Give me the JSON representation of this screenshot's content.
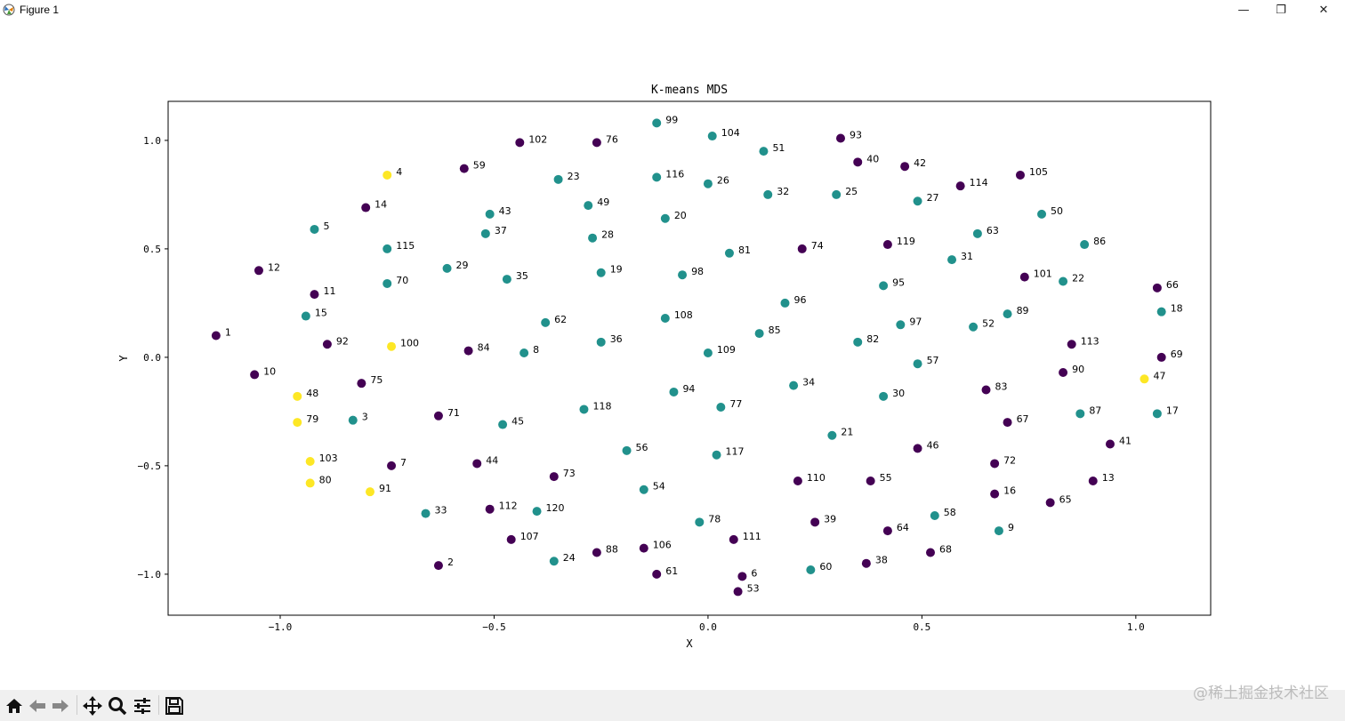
{
  "window": {
    "title": "Figure 1",
    "minimize_label": "—",
    "restore_label": "❐",
    "close_label": "✕"
  },
  "toolbar": {
    "buttons": [
      {
        "name": "home",
        "icon": "home-icon"
      },
      {
        "name": "back",
        "icon": "arrow-left-icon"
      },
      {
        "name": "forward",
        "icon": "arrow-right-icon"
      },
      {
        "name": "pan",
        "icon": "move-icon"
      },
      {
        "name": "zoom",
        "icon": "magnifier-icon"
      },
      {
        "name": "configure-subplots",
        "icon": "sliders-icon"
      },
      {
        "name": "save",
        "icon": "floppy-disk-icon"
      }
    ]
  },
  "watermark": "@稀土掘金技术社区",
  "chart_data": {
    "type": "scatter",
    "title": "K-means MDS",
    "xlabel": "X",
    "ylabel": "Y",
    "xlim": [
      -1.262,
      1.175
    ],
    "ylim": [
      -1.189,
      1.18
    ],
    "xticks": [
      -1.0,
      -0.5,
      0.0,
      0.5,
      1.0
    ],
    "xtick_labels": [
      "−1.0",
      "−0.5",
      "0.0",
      "0.5",
      "1.0"
    ],
    "yticks": [
      -1.0,
      -0.5,
      0.0,
      0.5,
      1.0
    ],
    "ytick_labels": [
      "−1.0",
      "−0.5",
      "0.0",
      "0.5",
      "1.0"
    ],
    "grid": false,
    "cluster_colors": [
      "#440154",
      "#21918c",
      "#fde725"
    ],
    "point_fields": [
      "label",
      "x",
      "y",
      "cluster"
    ],
    "points": [
      [
        "1",
        -1.15,
        0.1,
        0
      ],
      [
        "2",
        -0.63,
        -0.96,
        0
      ],
      [
        "3",
        -0.83,
        -0.29,
        1
      ],
      [
        "4",
        -0.75,
        0.84,
        2
      ],
      [
        "5",
        -0.92,
        0.59,
        1
      ],
      [
        "6",
        0.08,
        -1.01,
        0
      ],
      [
        "7",
        -0.74,
        -0.5,
        0
      ],
      [
        "8",
        -0.43,
        0.02,
        1
      ],
      [
        "9",
        0.68,
        -0.8,
        1
      ],
      [
        "10",
        -1.06,
        -0.08,
        0
      ],
      [
        "11",
        -0.92,
        0.29,
        0
      ],
      [
        "12",
        -1.05,
        0.4,
        0
      ],
      [
        "13",
        0.9,
        -0.57,
        0
      ],
      [
        "14",
        -0.8,
        0.69,
        0
      ],
      [
        "15",
        -0.94,
        0.19,
        1
      ],
      [
        "16",
        0.67,
        -0.63,
        0
      ],
      [
        "17",
        1.05,
        -0.26,
        1
      ],
      [
        "18",
        1.06,
        0.21,
        1
      ],
      [
        "19",
        -0.25,
        0.39,
        1
      ],
      [
        "20",
        -0.1,
        0.64,
        1
      ],
      [
        "21",
        0.29,
        -0.36,
        1
      ],
      [
        "22",
        0.83,
        0.35,
        1
      ],
      [
        "23",
        -0.35,
        0.82,
        1
      ],
      [
        "24",
        -0.36,
        -0.94,
        1
      ],
      [
        "25",
        0.3,
        0.75,
        1
      ],
      [
        "26",
        0.0,
        0.8,
        1
      ],
      [
        "27",
        0.49,
        0.72,
        1
      ],
      [
        "28",
        -0.27,
        0.55,
        1
      ],
      [
        "29",
        -0.61,
        0.41,
        1
      ],
      [
        "30",
        0.41,
        -0.18,
        1
      ],
      [
        "31",
        0.57,
        0.45,
        1
      ],
      [
        "32",
        0.14,
        0.75,
        1
      ],
      [
        "33",
        -0.66,
        -0.72,
        1
      ],
      [
        "34",
        0.2,
        -0.13,
        1
      ],
      [
        "35",
        -0.47,
        0.36,
        1
      ],
      [
        "36",
        -0.25,
        0.07,
        1
      ],
      [
        "37",
        -0.52,
        0.57,
        1
      ],
      [
        "38",
        0.37,
        -0.95,
        0
      ],
      [
        "39",
        0.25,
        -0.76,
        0
      ],
      [
        "40",
        0.35,
        0.9,
        0
      ],
      [
        "41",
        0.94,
        -0.4,
        0
      ],
      [
        "42",
        0.46,
        0.88,
        0
      ],
      [
        "43",
        -0.51,
        0.66,
        1
      ],
      [
        "44",
        -0.54,
        -0.49,
        0
      ],
      [
        "45",
        -0.48,
        -0.31,
        1
      ],
      [
        "46",
        0.49,
        -0.42,
        0
      ],
      [
        "47",
        1.02,
        -0.1,
        2
      ],
      [
        "48",
        -0.96,
        -0.18,
        2
      ],
      [
        "49",
        -0.28,
        0.7,
        1
      ],
      [
        "50",
        0.78,
        0.66,
        1
      ],
      [
        "51",
        0.13,
        0.95,
        1
      ],
      [
        "52",
        0.62,
        0.14,
        1
      ],
      [
        "53",
        0.07,
        -1.08,
        0
      ],
      [
        "54",
        -0.15,
        -0.61,
        1
      ],
      [
        "55",
        0.38,
        -0.57,
        0
      ],
      [
        "56",
        -0.19,
        -0.43,
        1
      ],
      [
        "57",
        0.49,
        -0.03,
        1
      ],
      [
        "58",
        0.53,
        -0.73,
        1
      ],
      [
        "59",
        -0.57,
        0.87,
        0
      ],
      [
        "60",
        0.24,
        -0.98,
        1
      ],
      [
        "61",
        -0.12,
        -1.0,
        0
      ],
      [
        "62",
        -0.38,
        0.16,
        1
      ],
      [
        "63",
        0.63,
        0.57,
        1
      ],
      [
        "64",
        0.42,
        -0.8,
        0
      ],
      [
        "65",
        0.8,
        -0.67,
        0
      ],
      [
        "66",
        1.05,
        0.32,
        0
      ],
      [
        "67",
        0.7,
        -0.3,
        0
      ],
      [
        "68",
        0.52,
        -0.9,
        0
      ],
      [
        "69",
        1.06,
        0.0,
        0
      ],
      [
        "70",
        -0.75,
        0.34,
        1
      ],
      [
        "71",
        -0.63,
        -0.27,
        0
      ],
      [
        "72",
        0.67,
        -0.49,
        0
      ],
      [
        "73",
        -0.36,
        -0.55,
        0
      ],
      [
        "74",
        0.22,
        0.5,
        0
      ],
      [
        "75",
        -0.81,
        -0.12,
        0
      ],
      [
        "76",
        -0.26,
        0.99,
        0
      ],
      [
        "77",
        0.03,
        -0.23,
        1
      ],
      [
        "78",
        -0.02,
        -0.76,
        1
      ],
      [
        "79",
        -0.96,
        -0.3,
        2
      ],
      [
        "80",
        -0.93,
        -0.58,
        2
      ],
      [
        "81",
        0.05,
        0.48,
        1
      ],
      [
        "82",
        0.35,
        0.07,
        1
      ],
      [
        "83",
        0.65,
        -0.15,
        0
      ],
      [
        "84",
        -0.56,
        0.03,
        0
      ],
      [
        "85",
        0.12,
        0.11,
        1
      ],
      [
        "86",
        0.88,
        0.52,
        1
      ],
      [
        "87",
        0.87,
        -0.26,
        1
      ],
      [
        "88",
        -0.26,
        -0.9,
        0
      ],
      [
        "89",
        0.7,
        0.2,
        1
      ],
      [
        "90",
        0.83,
        -0.07,
        0
      ],
      [
        "91",
        -0.79,
        -0.62,
        2
      ],
      [
        "92",
        -0.89,
        0.06,
        0
      ],
      [
        "93",
        0.31,
        1.01,
        0
      ],
      [
        "94",
        -0.08,
        -0.16,
        1
      ],
      [
        "95",
        0.41,
        0.33,
        1
      ],
      [
        "96",
        0.18,
        0.25,
        1
      ],
      [
        "97",
        0.45,
        0.15,
        1
      ],
      [
        "98",
        -0.06,
        0.38,
        1
      ],
      [
        "99",
        -0.12,
        1.08,
        1
      ],
      [
        "100",
        -0.74,
        0.05,
        2
      ],
      [
        "101",
        0.74,
        0.37,
        0
      ],
      [
        "102",
        -0.44,
        0.99,
        0
      ],
      [
        "103",
        -0.93,
        -0.48,
        2
      ],
      [
        "104",
        0.01,
        1.02,
        1
      ],
      [
        "105",
        0.73,
        0.84,
        0
      ],
      [
        "106",
        -0.15,
        -0.88,
        0
      ],
      [
        "107",
        -0.46,
        -0.84,
        0
      ],
      [
        "108",
        -0.1,
        0.18,
        1
      ],
      [
        "109",
        0.0,
        0.02,
        1
      ],
      [
        "110",
        0.21,
        -0.57,
        0
      ],
      [
        "111",
        0.06,
        -0.84,
        0
      ],
      [
        "112",
        -0.51,
        -0.7,
        0
      ],
      [
        "113",
        0.85,
        0.06,
        0
      ],
      [
        "114",
        0.59,
        0.79,
        0
      ],
      [
        "115",
        -0.75,
        0.5,
        1
      ],
      [
        "116",
        -0.12,
        0.83,
        1
      ],
      [
        "117",
        0.02,
        -0.45,
        1
      ],
      [
        "118",
        -0.29,
        -0.24,
        1
      ],
      [
        "119",
        0.42,
        0.52,
        0
      ],
      [
        "120",
        -0.4,
        -0.71,
        1
      ]
    ]
  }
}
